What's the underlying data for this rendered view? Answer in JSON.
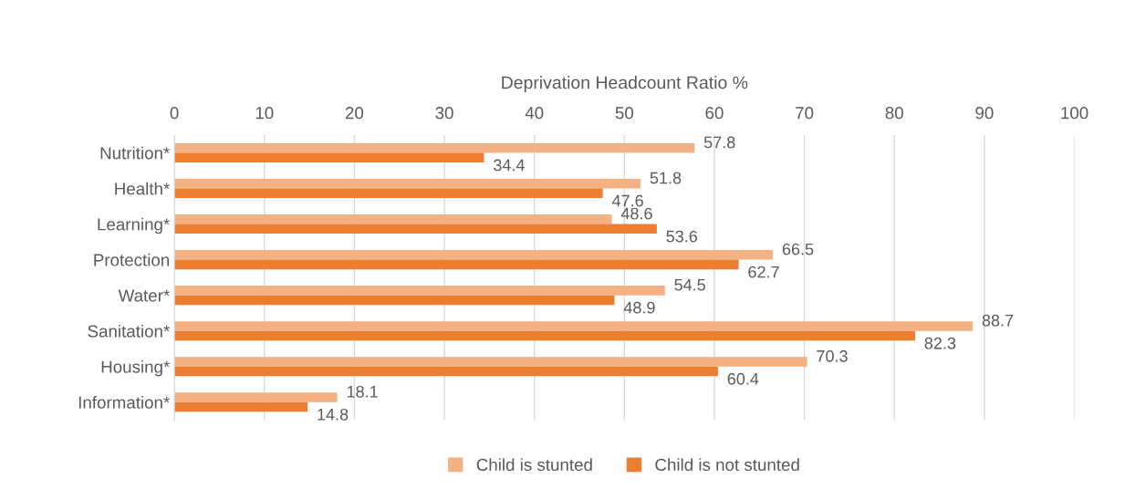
{
  "chart_data": {
    "type": "bar",
    "orientation": "horizontal",
    "xlabel": "Deprivation Headcount Ratio %",
    "categories": [
      "Nutrition*",
      "Health*",
      "Learning*",
      "Protection",
      "Water*",
      "Sanitation*",
      "Housing*",
      "Information*"
    ],
    "series": [
      {
        "name": "Child is stunted",
        "color": "#f4b183",
        "values": [
          57.8,
          51.8,
          48.6,
          66.5,
          54.5,
          88.7,
          70.3,
          18.1
        ]
      },
      {
        "name": "Child is not stunted",
        "color": "#ed7d31",
        "values": [
          34.4,
          47.6,
          53.6,
          62.7,
          48.9,
          82.3,
          60.4,
          14.8
        ]
      }
    ],
    "xlim": [
      0,
      100
    ],
    "xticks": [
      0,
      10,
      20,
      30,
      40,
      50,
      60,
      70,
      80,
      90,
      100
    ],
    "grid": "x",
    "legend": "bottom",
    "data_labels": true
  }
}
